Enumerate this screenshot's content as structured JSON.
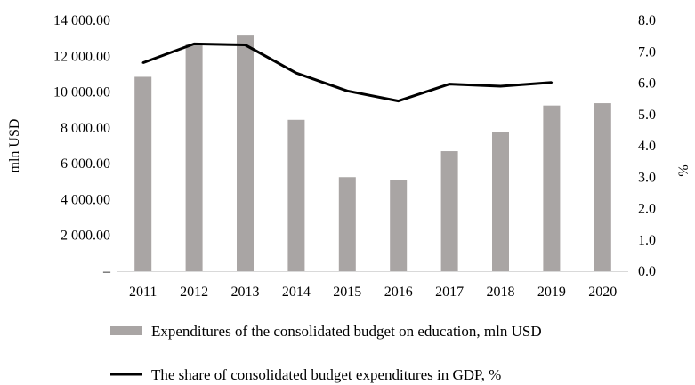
{
  "chart_data": {
    "type": "bar+line",
    "categories": [
      "2011",
      "2012",
      "2013",
      "2014",
      "2015",
      "2016",
      "2017",
      "2018",
      "2019",
      "2020"
    ],
    "series": [
      {
        "name": "Expenditures of the consolidated budget on education, mln USD",
        "type": "bar",
        "axis": "left",
        "color": "#a9a5a4",
        "values": [
          10850,
          12700,
          13200,
          8450,
          5250,
          5100,
          6700,
          7750,
          9250,
          9380
        ]
      },
      {
        "name": "The share of consolidated budget expenditures in GDP, %",
        "type": "line",
        "axis": "right",
        "color": "#000000",
        "values": [
          6.65,
          7.25,
          7.22,
          6.32,
          5.75,
          5.43,
          5.97,
          5.9,
          6.02,
          null
        ]
      }
    ],
    "y_left": {
      "label": "mln USD",
      "ylim": [
        0,
        14000
      ],
      "ticks": [
        0,
        2000,
        4000,
        6000,
        8000,
        10000,
        12000,
        14000
      ],
      "tick_labels": [
        "–",
        "2 000.00",
        "4 000.00",
        "6 000.00",
        "8 000.00",
        "10 000.00",
        "12 000.00",
        "14 000.00"
      ]
    },
    "y_right": {
      "label": "%",
      "ylim": [
        0,
        8
      ],
      "ticks": [
        0,
        1,
        2,
        3,
        4,
        5,
        6,
        7,
        8
      ],
      "tick_labels": [
        "0.0",
        "1.0",
        "2.0",
        "3.0",
        "4.0",
        "5.0",
        "6.0",
        "7.0",
        "8.0"
      ]
    },
    "grid": false,
    "legend_position": "bottom"
  }
}
